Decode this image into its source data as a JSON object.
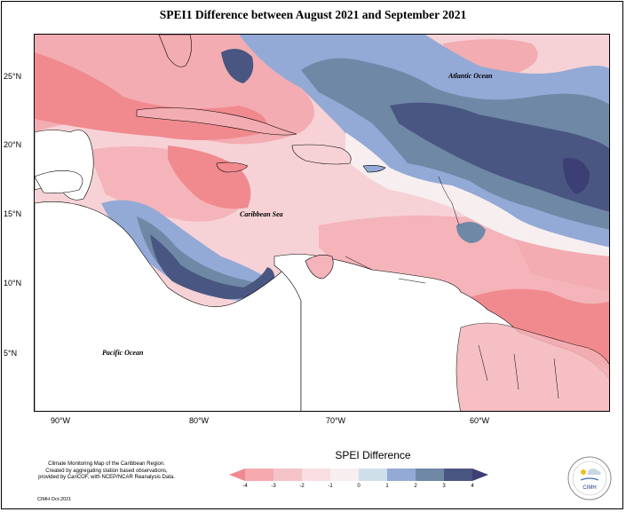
{
  "title": "SPEI1 Difference between August 2021 and September 2021",
  "latitude_labels": [
    "25°N",
    "20°N",
    "15°N",
    "10°N",
    "5°N"
  ],
  "longitude_labels": [
    "90°W",
    "80°W",
    "70°W",
    "60°W"
  ],
  "ocean_labels": {
    "atlantic": "Atlantic Ocean",
    "caribbean": "Caribbean Sea",
    "pacific": "Pacific Ocean"
  },
  "legend": {
    "title": "SPEI Difference",
    "ticks": [
      "-4",
      "-3",
      "-2",
      "-1",
      "0",
      "1",
      "2",
      "3",
      "4"
    ],
    "colors": [
      "#f08a8f",
      "#f6a9ae",
      "#f4c3c8",
      "#f8dde1",
      "#f7eef0",
      "#cfdfea",
      "#93a9d6",
      "#6f88a6",
      "#4a5682",
      "#3b3f73"
    ]
  },
  "credits": {
    "line1": "Climate Monitoring Map of the Caribbean Region.",
    "line2": "Created by aggregating station based observations,",
    "line3": "provided by CariCOF, with NCEP/NCAR Reanalysis Data.",
    "date": "CIMH Oct-2021"
  },
  "logo_text": "CIMH"
}
